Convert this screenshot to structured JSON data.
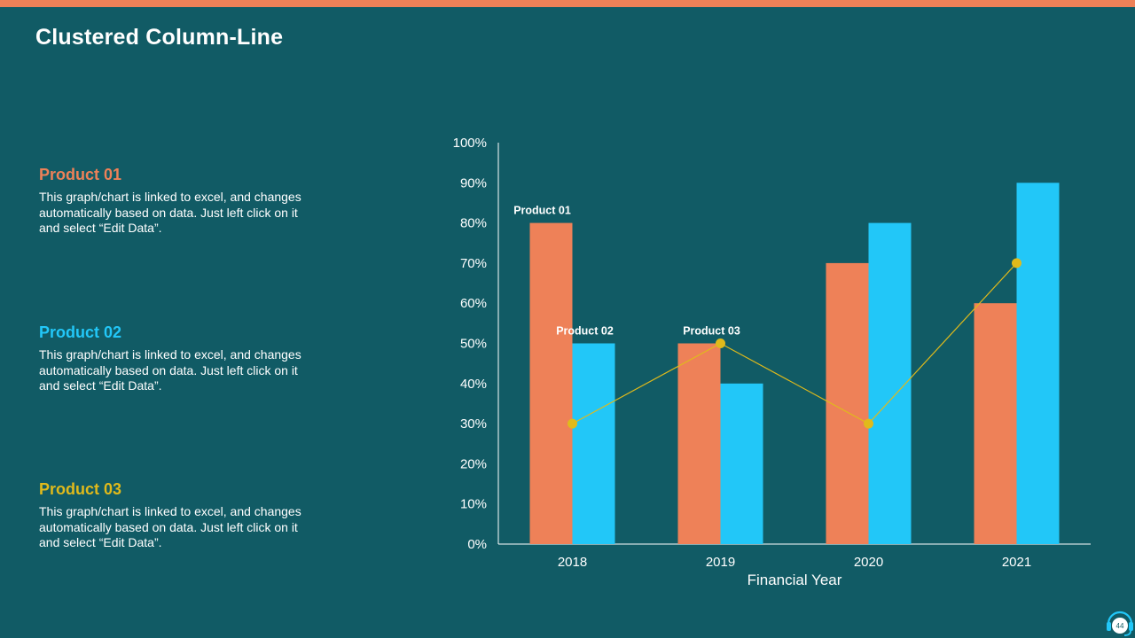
{
  "slide": {
    "title": "Clustered Column-Line",
    "page_number": "44"
  },
  "products": [
    {
      "title": "Product 01",
      "color": "#ee8158",
      "description": "This graph/chart is linked to excel, and changes automatically based on data. Just left click on it and select “Edit Data”."
    },
    {
      "title": "Product 02",
      "color": "#22c7f8",
      "description": "This graph/chart is linked to excel, and changes automatically based on data. Just left click on it and select “Edit Data”."
    },
    {
      "title": "Product 03",
      "color": "#e0ba1b",
      "description": "This graph/chart is linked to excel, and changes automatically based on data. Just left click on it and select “Edit Data”."
    }
  ],
  "chart_data": {
    "type": "bar",
    "title": "",
    "xlabel": "Financial Year",
    "ylabel": "",
    "categories": [
      "2018",
      "2019",
      "2020",
      "2021"
    ],
    "ylim": [
      0,
      100
    ],
    "yticks": [
      "0%",
      "10%",
      "20%",
      "30%",
      "40%",
      "50%",
      "60%",
      "70%",
      "80%",
      "90%",
      "100%"
    ],
    "series": [
      {
        "name": "Product 01",
        "type": "bar",
        "color": "#ee8158",
        "values": [
          80,
          50,
          70,
          60
        ]
      },
      {
        "name": "Product 02",
        "type": "bar",
        "color": "#22c7f8",
        "values": [
          50,
          40,
          80,
          90
        ]
      },
      {
        "name": "Product 03",
        "type": "line",
        "color": "#e0ba1b",
        "values": [
          30,
          50,
          30,
          70
        ]
      }
    ],
    "annotations": [
      {
        "text": "Product 01",
        "series": 0,
        "category": 0
      },
      {
        "text": "Product 02",
        "series": 1,
        "category": 0
      },
      {
        "text": "Product 03",
        "series": 2,
        "category": 1
      }
    ]
  }
}
